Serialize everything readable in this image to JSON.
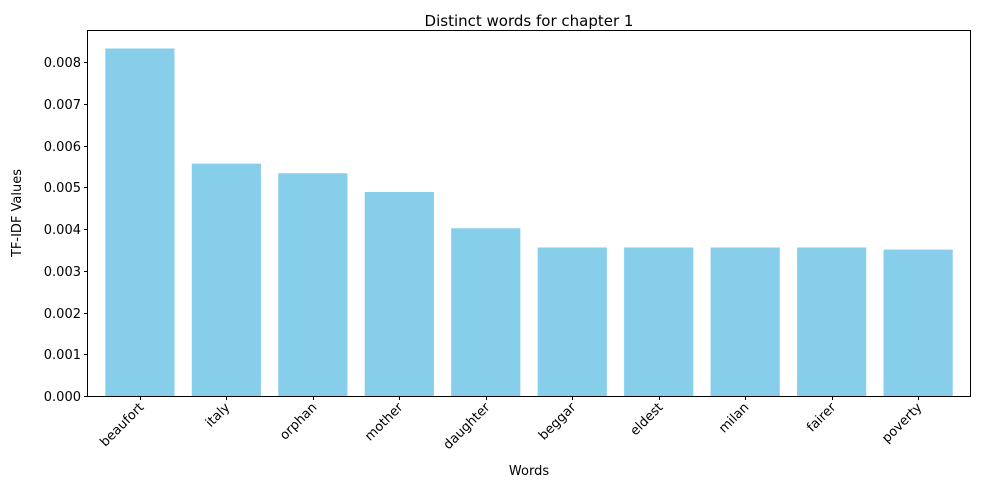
{
  "chart_data": {
    "type": "bar",
    "title": "Distinct words for chapter 1",
    "xlabel": "Words",
    "ylabel": "TF-IDF Values",
    "categories": [
      "beaufort",
      "italy",
      "orphan",
      "mother",
      "daughter",
      "beggar",
      "eldest",
      "milan",
      "fairer",
      "poverty"
    ],
    "values": [
      0.00833,
      0.00557,
      0.00534,
      0.00489,
      0.00402,
      0.00356,
      0.00356,
      0.00356,
      0.00356,
      0.00351
    ],
    "ylim": [
      0,
      0.00875
    ],
    "yticks": [
      "0.000",
      "0.001",
      "0.002",
      "0.003",
      "0.004",
      "0.005",
      "0.006",
      "0.007",
      "0.008"
    ],
    "ytick_values": [
      0,
      0.001,
      0.002,
      0.003,
      0.004,
      0.005,
      0.006,
      0.007,
      0.008
    ],
    "bar_color": "#87CEEB",
    "grid": false,
    "legend": "none"
  }
}
